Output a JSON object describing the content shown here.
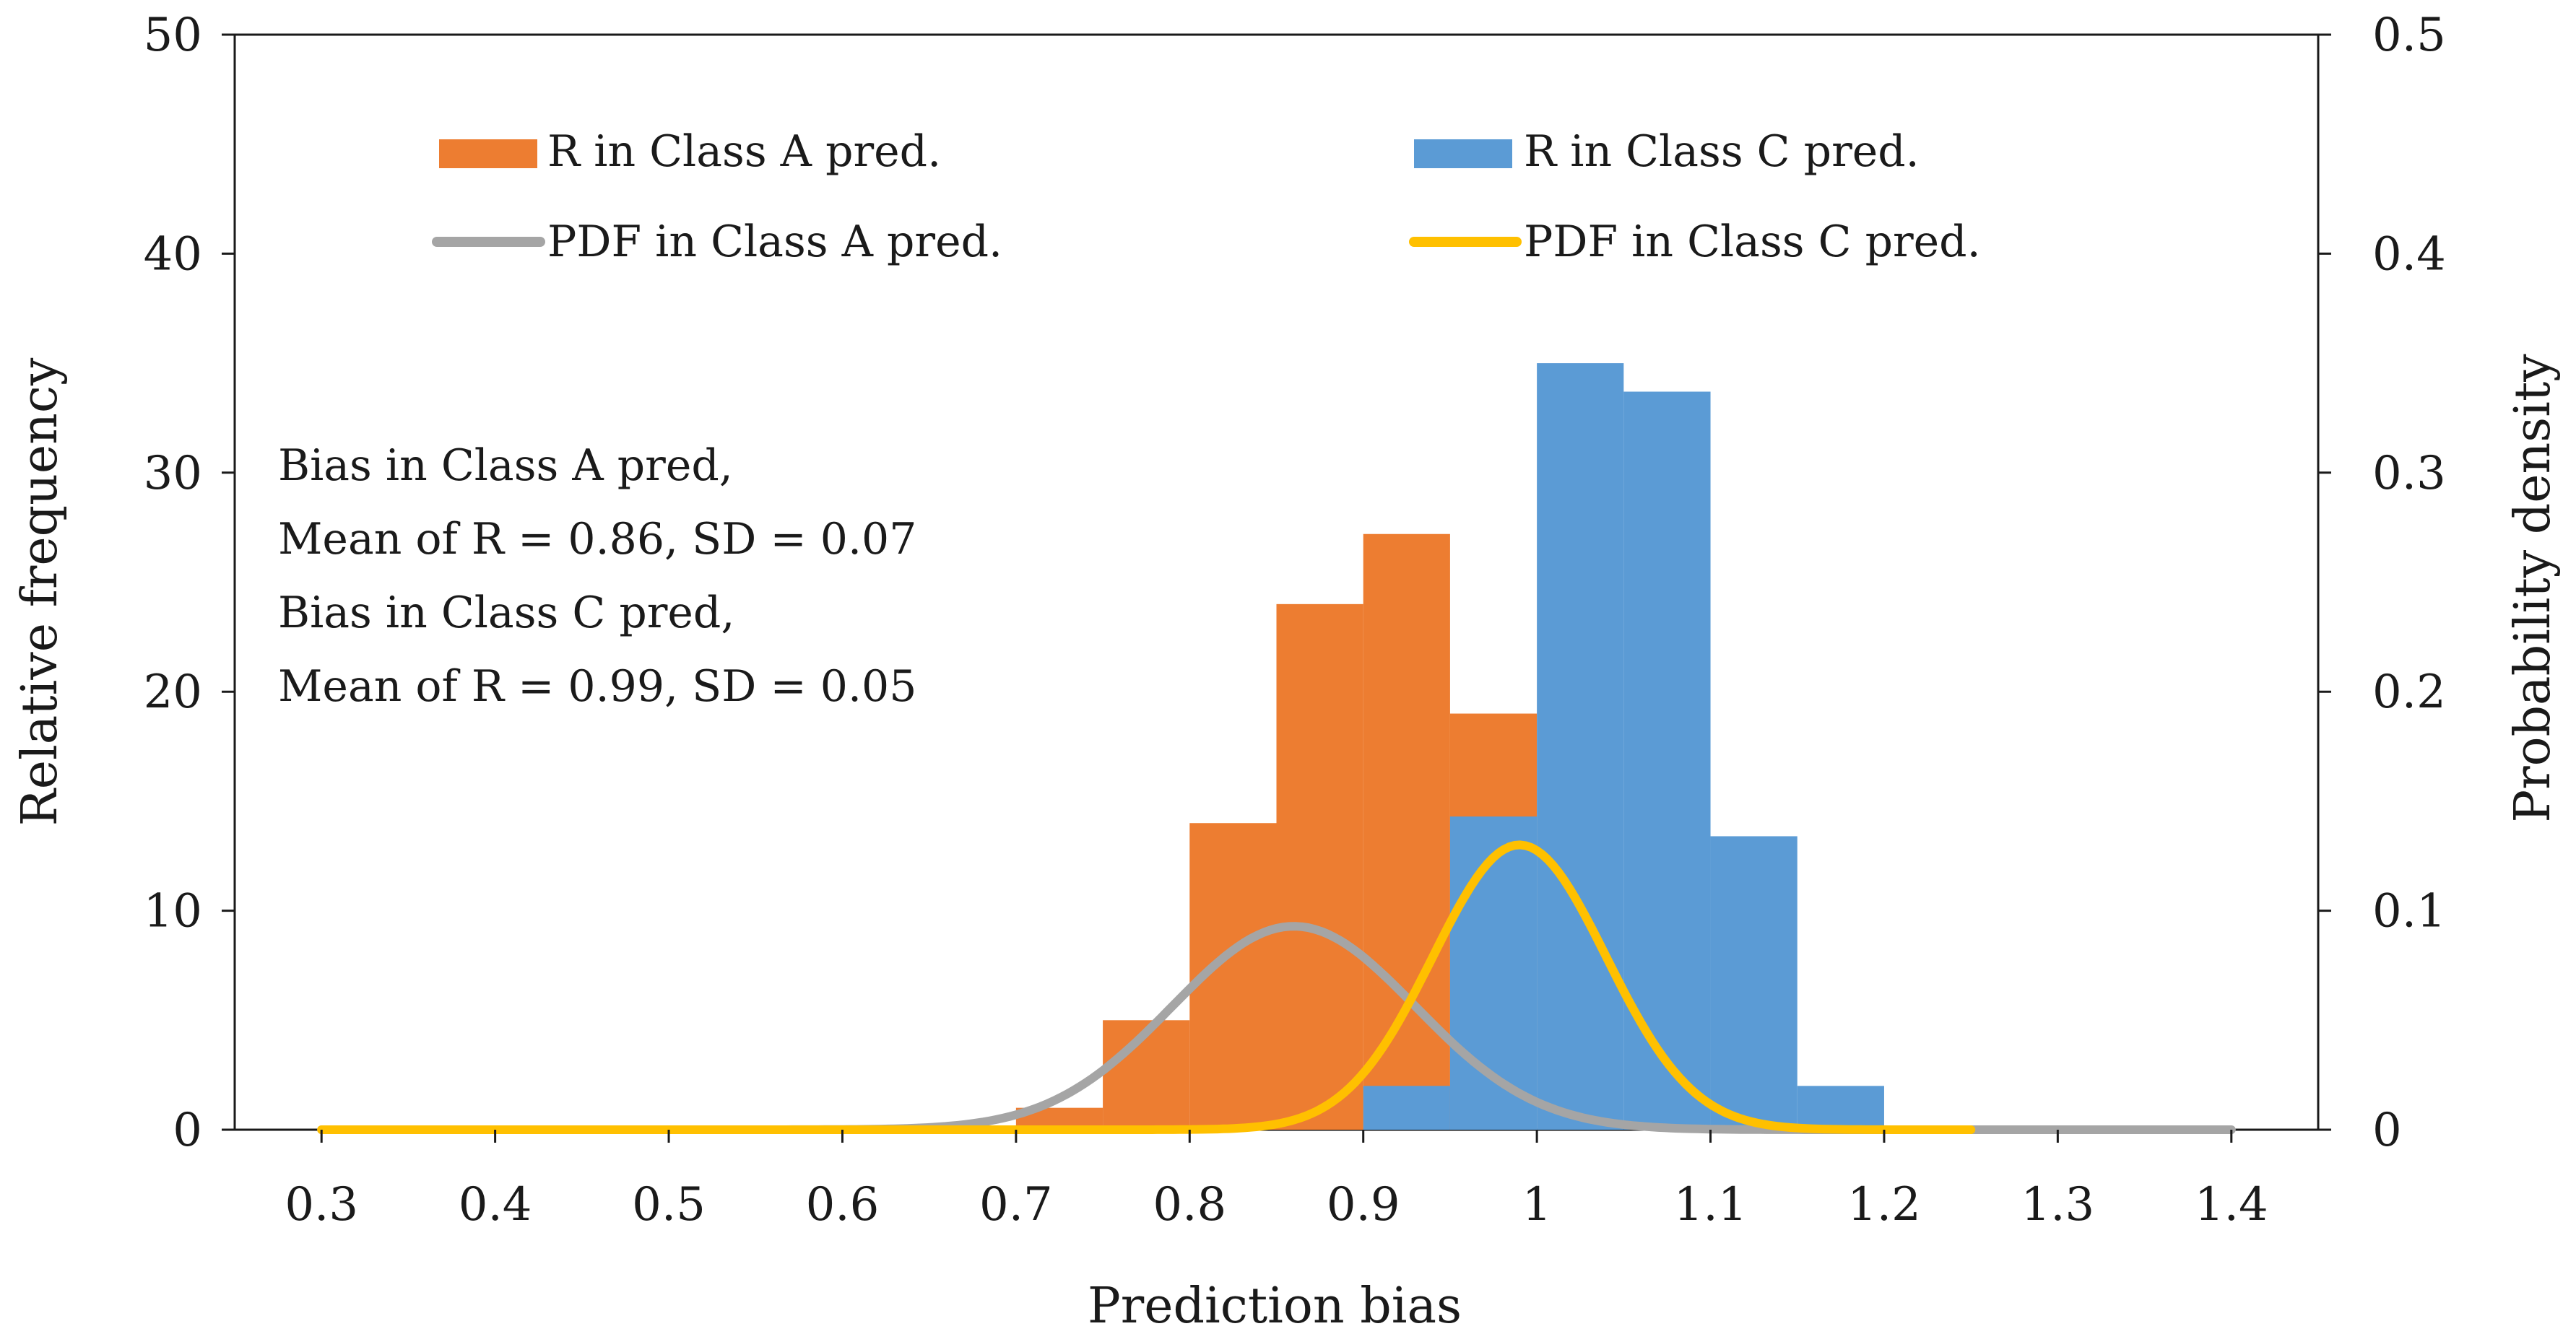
{
  "chart_data": {
    "type": "bar",
    "title": "",
    "xlabel": "Prediction bias",
    "ylabel": "Relative frequency",
    "y2label": "Probability density",
    "xlim": [
      0.3,
      1.4
    ],
    "ylim": [
      0,
      50
    ],
    "y2lim": [
      0,
      0.5
    ],
    "x_ticks": [
      "0.3",
      "0.4",
      "0.5",
      "0.6",
      "0.7",
      "0.8",
      "0.9",
      "1",
      "1.1",
      "1.2",
      "1.3",
      "1.4"
    ],
    "y_ticks": [
      "0",
      "10",
      "20",
      "30",
      "40",
      "50"
    ],
    "y2_ticks": [
      "0",
      "0.1",
      "0.2",
      "0.3",
      "0.4",
      "0.5"
    ],
    "bin_width": 0.05,
    "series": [
      {
        "name": "R in Class A pred.",
        "kind": "histogram",
        "color": "#ED7D31",
        "bins": [
          0.7,
          0.75,
          0.8,
          0.85,
          0.9,
          0.95
        ],
        "values": [
          1,
          5,
          14,
          24,
          27.2,
          19
        ]
      },
      {
        "name": "R in Class C pred.",
        "kind": "histogram",
        "color": "#5B9BD5",
        "bins": [
          0.9,
          0.95,
          1.0,
          1.05,
          1.1,
          1.15
        ],
        "values": [
          2,
          14.3,
          35,
          33.7,
          13.4,
          2
        ]
      },
      {
        "name": "PDF in Class A pred.",
        "kind": "pdf",
        "axis": "right",
        "color": "#A5A5A5",
        "mean": 0.86,
        "sd": 0.07,
        "x_range": [
          0.3,
          1.4
        ]
      },
      {
        "name": "PDF in Class C pred.",
        "kind": "pdf",
        "axis": "right",
        "color": "#FFC000",
        "mean": 0.99,
        "sd": 0.05,
        "x_range": [
          0.3,
          1.25
        ]
      }
    ],
    "annotations": [
      "Bias in Class A pred,",
      "Mean of R = 0.86, SD = 0.07",
      "Bias in Class C pred,",
      "Mean of R = 0.99, SD = 0.05"
    ],
    "legend_position": "top"
  }
}
